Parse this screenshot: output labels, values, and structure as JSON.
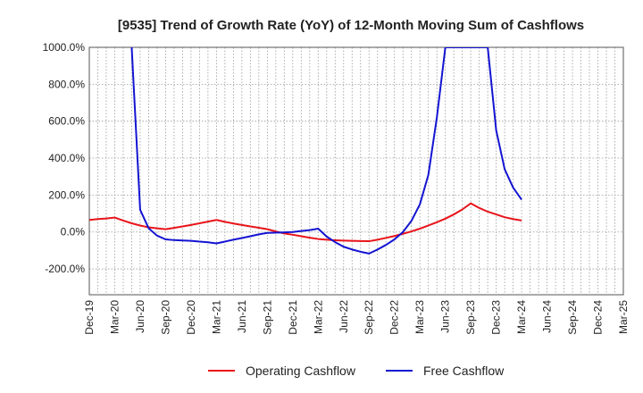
{
  "chart_data": {
    "type": "line",
    "title": "[9535]  Trend of Growth Rate (YoY) of 12-Month Moving Sum of Cashflows",
    "xlabel": "",
    "ylabel": "",
    "ylim": [
      -340,
      1000
    ],
    "y_ticks": [
      {
        "value": 1000,
        "label": "1000.0%"
      },
      {
        "value": 800,
        "label": "800.0%"
      },
      {
        "value": 600,
        "label": "600.0%"
      },
      {
        "value": 400,
        "label": "400.0%"
      },
      {
        "value": 200,
        "label": "200.0%"
      },
      {
        "value": 0,
        "label": "0.0%"
      },
      {
        "value": -200,
        "label": "-200.0%"
      }
    ],
    "x_tick_labels": [
      "Dec-19",
      "Mar-20",
      "Jun-20",
      "Sep-20",
      "Dec-20",
      "Mar-21",
      "Jun-21",
      "Sep-21",
      "Dec-21",
      "Mar-22",
      "Jun-22",
      "Sep-22",
      "Dec-22",
      "Mar-23",
      "Jun-23",
      "Sep-23",
      "Dec-23",
      "Mar-24",
      "Jun-24",
      "Sep-24",
      "Dec-24",
      "Mar-25"
    ],
    "grid": true,
    "legend_position": "bottom",
    "series": [
      {
        "name": "Operating Cashflow",
        "color": "#e8141b",
        "points": [
          [
            "Dec-19",
            65
          ],
          [
            "Jan-20",
            70
          ],
          [
            "Feb-20",
            73
          ],
          [
            "Mar-20",
            78
          ],
          [
            "Apr-20",
            62
          ],
          [
            "May-20",
            47
          ],
          [
            "Jun-20",
            35
          ],
          [
            "Jul-20",
            25
          ],
          [
            "Aug-20",
            20
          ],
          [
            "Sep-20",
            15
          ],
          [
            "Oct-20",
            22
          ],
          [
            "Nov-20",
            30
          ],
          [
            "Dec-20",
            38
          ],
          [
            "Jan-21",
            47
          ],
          [
            "Feb-21",
            56
          ],
          [
            "Mar-21",
            65
          ],
          [
            "Apr-21",
            55
          ],
          [
            "May-21",
            46
          ],
          [
            "Jun-21",
            38
          ],
          [
            "Jul-21",
            30
          ],
          [
            "Aug-21",
            23
          ],
          [
            "Sep-21",
            15
          ],
          [
            "Oct-21",
            3
          ],
          [
            "Nov-21",
            -8
          ],
          [
            "Dec-21",
            -15
          ],
          [
            "Jan-22",
            -23
          ],
          [
            "Feb-22",
            -31
          ],
          [
            "Mar-22",
            -38
          ],
          [
            "Apr-22",
            -42
          ],
          [
            "May-22",
            -45
          ],
          [
            "Jun-22",
            -47
          ],
          [
            "Jul-22",
            -48
          ],
          [
            "Aug-22",
            -49
          ],
          [
            "Sep-22",
            -50
          ],
          [
            "Oct-22",
            -42
          ],
          [
            "Nov-22",
            -32
          ],
          [
            "Dec-22",
            -22
          ],
          [
            "Jan-23",
            -10
          ],
          [
            "Feb-23",
            3
          ],
          [
            "Mar-23",
            18
          ],
          [
            "Apr-23",
            35
          ],
          [
            "May-23",
            53
          ],
          [
            "Jun-23",
            72
          ],
          [
            "Jul-23",
            95
          ],
          [
            "Aug-23",
            122
          ],
          [
            "Sep-23",
            155
          ],
          [
            "Oct-23",
            130
          ],
          [
            "Nov-23",
            110
          ],
          [
            "Dec-23",
            95
          ],
          [
            "Jan-24",
            80
          ],
          [
            "Feb-24",
            70
          ],
          [
            "Mar-24",
            62
          ]
        ]
      },
      {
        "name": "Free Cashflow",
        "color": "#1414d2",
        "points": [
          [
            "May-20",
            1000
          ],
          [
            "Jun-20",
            120
          ],
          [
            "Jul-20",
            20
          ],
          [
            "Aug-20",
            -20
          ],
          [
            "Sep-20",
            -40
          ],
          [
            "Oct-20",
            -44
          ],
          [
            "Nov-20",
            -46
          ],
          [
            "Dec-20",
            -48
          ],
          [
            "Jan-21",
            -52
          ],
          [
            "Feb-21",
            -56
          ],
          [
            "Mar-21",
            -62
          ],
          [
            "Apr-21",
            -52
          ],
          [
            "May-21",
            -42
          ],
          [
            "Jun-21",
            -33
          ],
          [
            "Jul-21",
            -23
          ],
          [
            "Aug-21",
            -13
          ],
          [
            "Sep-21",
            -5
          ],
          [
            "Oct-21",
            -4
          ],
          [
            "Nov-21",
            -2
          ],
          [
            "Dec-21",
            0
          ],
          [
            "Jan-22",
            5
          ],
          [
            "Feb-22",
            10
          ],
          [
            "Mar-22",
            18
          ],
          [
            "Apr-22",
            -25
          ],
          [
            "May-22",
            -55
          ],
          [
            "Jun-22",
            -80
          ],
          [
            "Jul-22",
            -95
          ],
          [
            "Aug-22",
            -107
          ],
          [
            "Sep-22",
            -117
          ],
          [
            "Oct-22",
            -95
          ],
          [
            "Nov-22",
            -70
          ],
          [
            "Dec-22",
            -40
          ],
          [
            "Jan-23",
            0
          ],
          [
            "Feb-23",
            60
          ],
          [
            "Mar-23",
            150
          ],
          [
            "Apr-23",
            310
          ],
          [
            "May-23",
            620
          ],
          [
            "Jun-23",
            1000
          ],
          [
            "Nov-23",
            1000
          ],
          [
            "Dec-23",
            550
          ],
          [
            "Jan-24",
            340
          ],
          [
            "Feb-24",
            240
          ],
          [
            "Mar-24",
            175
          ]
        ]
      }
    ]
  }
}
